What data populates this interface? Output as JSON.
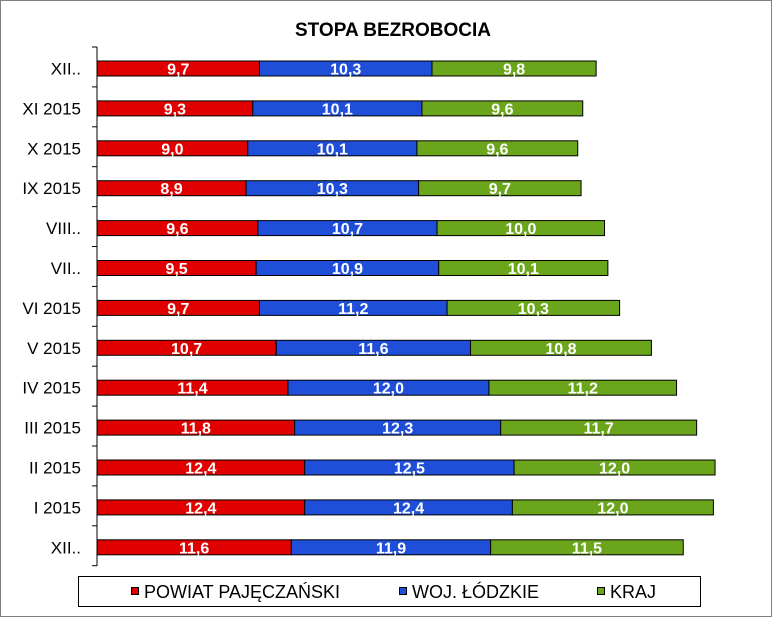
{
  "chart_data": {
    "type": "bar",
    "orientation": "horizontal",
    "stacked": true,
    "title": "STOPA BEZROBOCIA",
    "categories": [
      "XII..",
      "XI 2015",
      "X 2015",
      "IX 2015",
      "VIII..",
      "VII..",
      "VI 2015",
      "V 2015",
      "IV 2015",
      "III 2015",
      "II 2015",
      "I 2015",
      "XII.."
    ],
    "series": [
      {
        "name": "POWIAT PAJĘCZAŃSKI",
        "color": "#e00000",
        "values": [
          9.7,
          9.3,
          9.0,
          8.9,
          9.6,
          9.5,
          9.7,
          10.7,
          11.4,
          11.8,
          12.4,
          12.4,
          11.6
        ],
        "labels": [
          "9,7",
          "9,3",
          "9,0",
          "8,9",
          "9,6",
          "9,5",
          "9,7",
          "10,7",
          "11,4",
          "11,8",
          "12,4",
          "12,4",
          "11,6"
        ]
      },
      {
        "name": "WOJ. ŁÓDZKIE",
        "color": "#1f4ed8",
        "values": [
          10.3,
          10.1,
          10.1,
          10.3,
          10.7,
          10.9,
          11.2,
          11.6,
          12.0,
          12.3,
          12.5,
          12.4,
          11.9
        ],
        "labels": [
          "10,3",
          "10,1",
          "10,1",
          "10,3",
          "10,7",
          "10,9",
          "11,2",
          "11,6",
          "12,0",
          "12,3",
          "12,5",
          "12,4",
          "11,9"
        ]
      },
      {
        "name": "KRAJ",
        "color": "#6aa51c",
        "values": [
          9.8,
          9.6,
          9.6,
          9.7,
          10.0,
          10.1,
          10.3,
          10.8,
          11.2,
          11.7,
          12.0,
          12.0,
          11.5
        ],
        "labels": [
          "9,8",
          "9,6",
          "9,6",
          "9,7",
          "10,0",
          "10,1",
          "10,3",
          "10,8",
          "11,2",
          "11,7",
          "12,0",
          "12,0",
          "11,5"
        ]
      }
    ],
    "grid": false,
    "legend_position": "bottom"
  }
}
